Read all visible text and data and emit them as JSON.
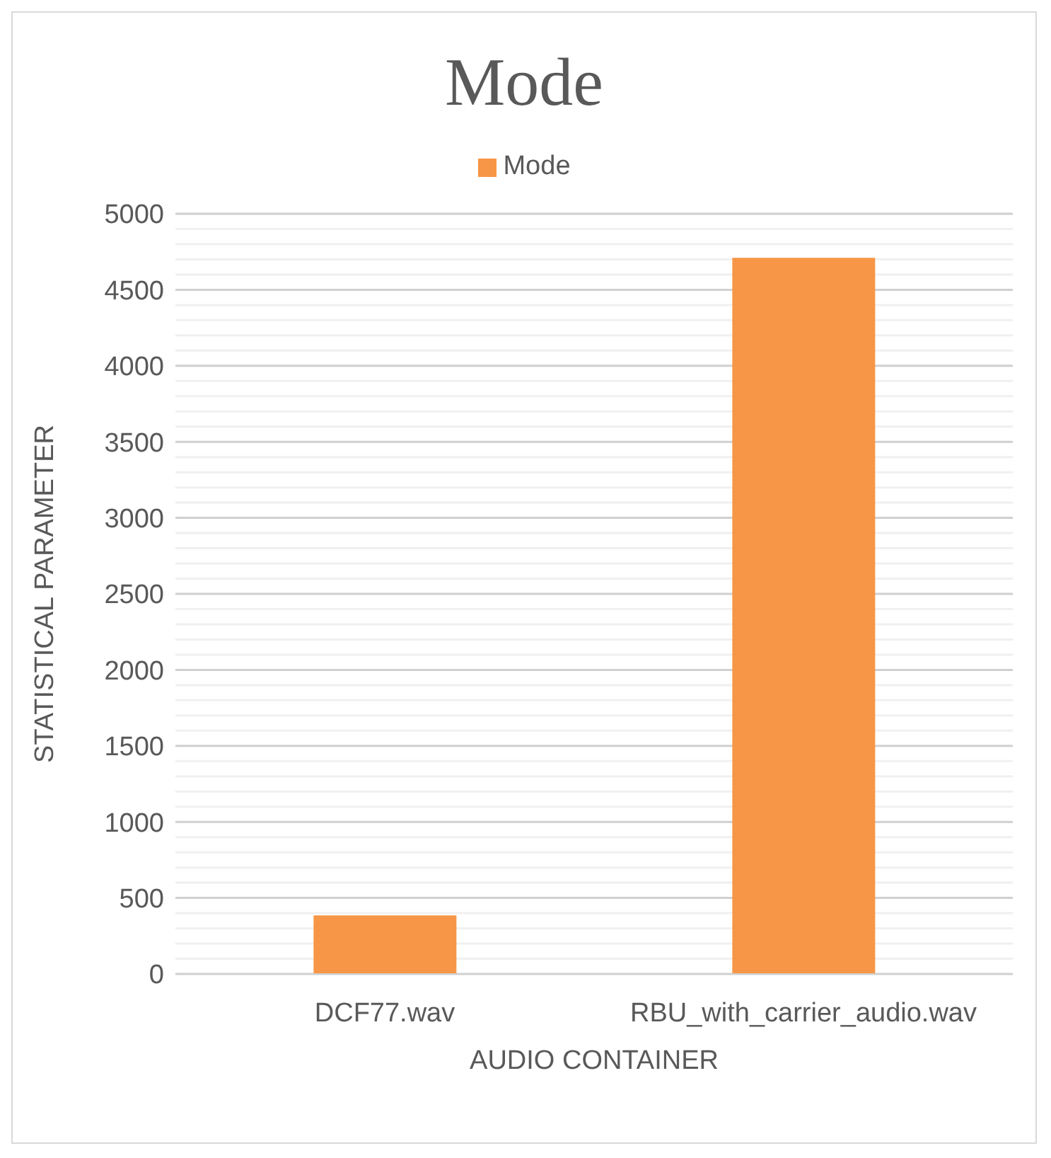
{
  "chart_data": {
    "type": "bar",
    "title": "Mode",
    "xlabel": "AUDIO CONTAINER",
    "ylabel": "STATISTICAL PARAMETER",
    "categories": [
      "DCF77.wav",
      "RBU_with_carrier_audio.wav"
    ],
    "series": [
      {
        "name": "Mode",
        "color": "#f79646",
        "values": [
          385,
          4710
        ]
      }
    ],
    "ylim": [
      0,
      5000
    ],
    "yticks": [
      0,
      {
        "value": 100,
        "label": null
      },
      {
        "value": 200,
        "label": null
      },
      {
        "value": 300,
        "label": null
      },
      {
        "value": 400,
        "label": null
      },
      500,
      {
        "value": 600,
        "label": null
      },
      {
        "value": 700,
        "label": null
      },
      {
        "value": 800,
        "label": null
      },
      {
        "value": 900,
        "label": null
      },
      1000,
      {
        "value": 1100,
        "label": null
      },
      {
        "value": 1200,
        "label": null
      },
      {
        "value": 1300,
        "label": null
      },
      {
        "value": 1400,
        "label": null
      },
      1500,
      {
        "value": 1600,
        "label": null
      },
      {
        "value": 1700,
        "label": null
      },
      {
        "value": 1800,
        "label": null
      },
      {
        "value": 1900,
        "label": null
      },
      2000,
      {
        "value": 2100,
        "label": null
      },
      {
        "value": 2200,
        "label": null
      },
      {
        "value": 2300,
        "label": null
      },
      {
        "value": 2400,
        "label": null
      },
      2500,
      {
        "value": 2600,
        "label": null
      },
      {
        "value": 2700,
        "label": null
      },
      {
        "value": 2800,
        "label": null
      },
      {
        "value": 2900,
        "label": null
      },
      3000,
      {
        "value": 3100,
        "label": null
      },
      {
        "value": 3200,
        "label": null
      },
      {
        "value": 3300,
        "label": null
      },
      {
        "value": 3400,
        "label": null
      },
      3500,
      {
        "value": 3600,
        "label": null
      },
      {
        "value": 3700,
        "label": null
      },
      {
        "value": 3800,
        "label": null
      },
      {
        "value": 3900,
        "label": null
      },
      4000,
      {
        "value": 4100,
        "label": null
      },
      {
        "value": 4200,
        "label": null
      },
      {
        "value": 4300,
        "label": null
      },
      {
        "value": 4400,
        "label": null
      },
      4500,
      {
        "value": 4600,
        "label": null
      },
      {
        "value": 4700,
        "label": null
      },
      {
        "value": 4800,
        "label": null
      },
      {
        "value": 4900,
        "label": null
      },
      5000
    ],
    "grid": "y",
    "legend": "top"
  }
}
